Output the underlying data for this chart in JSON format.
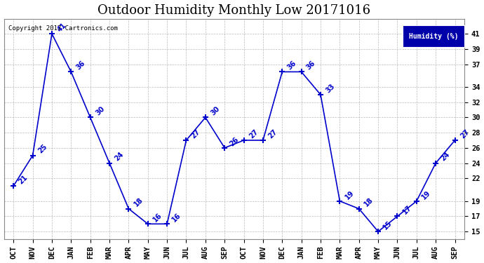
{
  "title": "Outdoor Humidity Monthly Low 20171016",
  "copyright": "Copyright 2017 Cartronics.com",
  "legend_label": "Humidity (%)",
  "x_labels": [
    "OCT",
    "NOV",
    "DEC",
    "JAN",
    "FEB",
    "MAR",
    "APR",
    "MAY",
    "JUN",
    "JUL",
    "AUG",
    "SEP",
    "OCT",
    "NOV",
    "DEC",
    "JAN",
    "FEB",
    "MAR",
    "APR",
    "MAY",
    "JUN",
    "JUL",
    "AUG",
    "SEP"
  ],
  "y_values": [
    21,
    25,
    41,
    36,
    30,
    24,
    18,
    16,
    16,
    27,
    30,
    26,
    27,
    27,
    36,
    36,
    33,
    19,
    18,
    15,
    17,
    19,
    24,
    27
  ],
  "y_ticks": [
    15,
    17,
    19,
    22,
    24,
    26,
    28,
    30,
    32,
    34,
    37,
    39,
    41
  ],
  "ylim": [
    14.0,
    43.0
  ],
  "line_color": "#0000cc",
  "marker_color": "#0000cc",
  "background_color": "#ffffff",
  "grid_color": "#aaaaaa",
  "title_fontsize": 13,
  "label_fontsize": 7.5,
  "annotation_fontsize": 7,
  "legend_bg": "#0000aa",
  "legend_text_color": "#ffffff"
}
